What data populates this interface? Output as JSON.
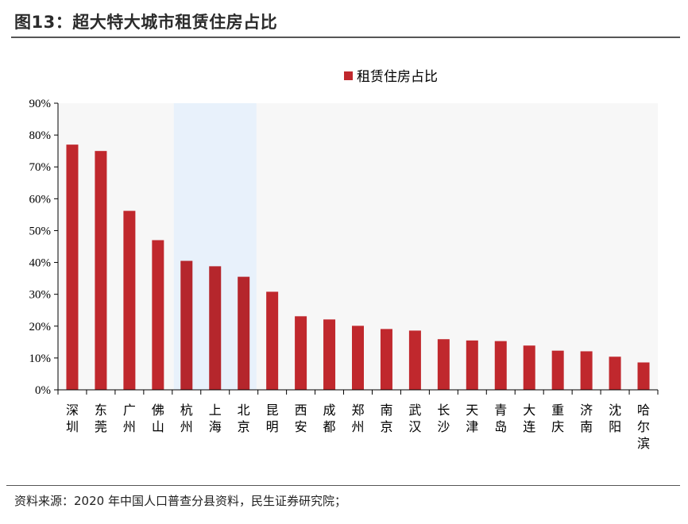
{
  "figure": {
    "title": "图13：超大特大城市租赁住房占比",
    "source": "资料来源：2020 年中国人口普查分县资料，民生证券研究院；"
  },
  "colors": {
    "bar": "#c0282d",
    "bar_highlight": "#b5262c",
    "highlight_band": "#e8f1fb",
    "plot_bg": "#f7f7f7",
    "axis": "#000000"
  },
  "chart_data": {
    "type": "bar",
    "categories": [
      "深圳",
      "东莞",
      "广州",
      "佛山",
      "杭州",
      "上海",
      "北京",
      "昆明",
      "西安",
      "成都",
      "郑州",
      "南京",
      "武汉",
      "长沙",
      "天津",
      "青岛",
      "大连",
      "重庆",
      "济南",
      "沈阳",
      "哈尔滨"
    ],
    "series": [
      {
        "name": "租赁住房占比",
        "values": [
          0.77,
          0.75,
          0.562,
          0.47,
          0.405,
          0.388,
          0.355,
          0.308,
          0.231,
          0.221,
          0.201,
          0.191,
          0.186,
          0.159,
          0.155,
          0.153,
          0.139,
          0.123,
          0.121,
          0.104,
          0.086
        ]
      }
    ],
    "highlighted_categories": [
      "杭州",
      "上海",
      "北京"
    ],
    "ylim": [
      0,
      0.9
    ],
    "yticks": [
      "0%",
      "10%",
      "20%",
      "30%",
      "40%",
      "50%",
      "60%",
      "70%",
      "80%",
      "90%"
    ],
    "legend": {
      "position": "top-center",
      "label": "租赁住房占比"
    },
    "grid": false
  }
}
